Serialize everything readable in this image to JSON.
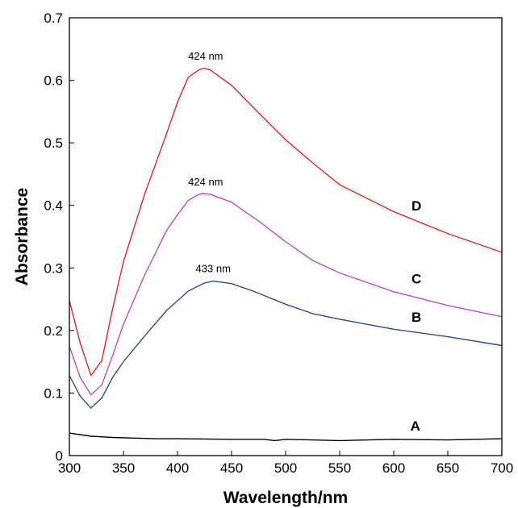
{
  "chart_data": {
    "type": "line",
    "xlabel": "Wavelength/nm",
    "ylabel": "Absorbance",
    "xlim": [
      300,
      700
    ],
    "ylim": [
      0,
      0.7
    ],
    "xticks": [
      300,
      350,
      400,
      450,
      500,
      550,
      600,
      650,
      700
    ],
    "yticks": [
      0,
      0.1,
      0.2,
      0.3,
      0.4,
      0.5,
      0.6,
      0.7
    ],
    "xtick_labels": [
      "300",
      "350",
      "400",
      "450",
      "500",
      "550",
      "600",
      "650",
      "700"
    ],
    "ytick_labels": [
      "0",
      "0.1",
      "0.2",
      "0.3",
      "0.4",
      "0.5",
      "0.6",
      "0.7"
    ],
    "grid": false,
    "series": [
      {
        "name": "A",
        "color": "#000000",
        "x": [
          300,
          320,
          340,
          360,
          380,
          400,
          450,
          480,
          490,
          500,
          550,
          600,
          650,
          700
        ],
        "y": [
          0.036,
          0.031,
          0.029,
          0.028,
          0.027,
          0.027,
          0.026,
          0.026,
          0.024,
          0.026,
          0.024,
          0.026,
          0.025,
          0.027
        ]
      },
      {
        "name": "B",
        "color": "#2b4a9a",
        "x": [
          300,
          310,
          320,
          330,
          340,
          350,
          370,
          390,
          410,
          425,
          433,
          450,
          470,
          500,
          525,
          550,
          600,
          650,
          700
        ],
        "y": [
          0.128,
          0.095,
          0.076,
          0.092,
          0.125,
          0.15,
          0.192,
          0.232,
          0.263,
          0.276,
          0.279,
          0.275,
          0.263,
          0.242,
          0.227,
          0.218,
          0.202,
          0.19,
          0.176
        ]
      },
      {
        "name": "C",
        "color": "#c04bb8",
        "x": [
          300,
          310,
          320,
          330,
          340,
          350,
          370,
          390,
          400,
          410,
          420,
          424,
          430,
          450,
          475,
          500,
          525,
          550,
          600,
          650,
          700
        ],
        "y": [
          0.175,
          0.125,
          0.097,
          0.113,
          0.16,
          0.21,
          0.29,
          0.36,
          0.385,
          0.408,
          0.418,
          0.419,
          0.418,
          0.405,
          0.375,
          0.342,
          0.312,
          0.292,
          0.262,
          0.24,
          0.222
        ]
      },
      {
        "name": "D",
        "color": "#e52222",
        "x": [
          300,
          310,
          320,
          330,
          340,
          350,
          370,
          390,
          400,
          410,
          420,
          424,
          430,
          450,
          475,
          500,
          525,
          550,
          600,
          650,
          700
        ],
        "y": [
          0.248,
          0.18,
          0.128,
          0.152,
          0.235,
          0.31,
          0.42,
          0.515,
          0.565,
          0.605,
          0.617,
          0.619,
          0.617,
          0.592,
          0.548,
          0.505,
          0.468,
          0.433,
          0.39,
          0.355,
          0.325
        ]
      }
    ],
    "series_labels": [
      {
        "text": "A",
        "x": 620,
        "y": 0.04
      },
      {
        "text": "B",
        "x": 621,
        "y": 0.214
      },
      {
        "text": "C",
        "x": 621,
        "y": 0.275
      },
      {
        "text": "D",
        "x": 621,
        "y": 0.392
      }
    ],
    "annotations": [
      {
        "text": "424 nm",
        "x": 426,
        "y": 0.633
      },
      {
        "text": "424 nm",
        "x": 426,
        "y": 0.432
      },
      {
        "text": "433 nm",
        "x": 433,
        "y": 0.293
      }
    ]
  }
}
